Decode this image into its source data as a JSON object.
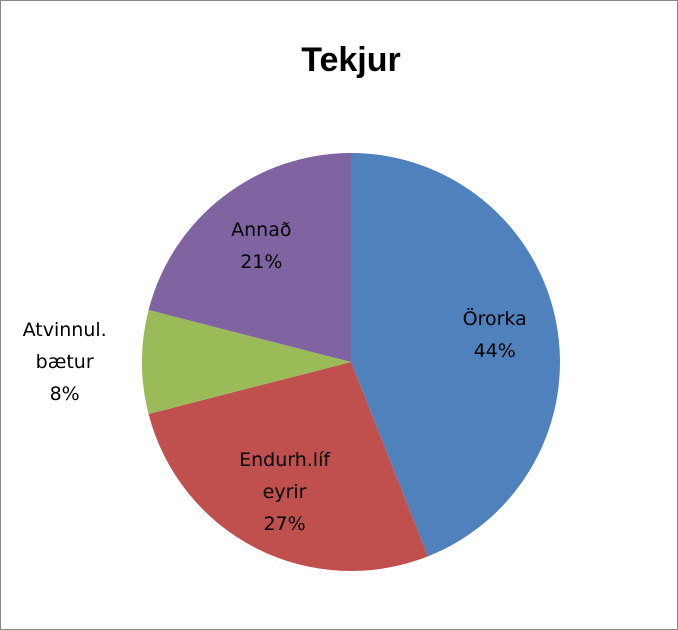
{
  "chart_data": {
    "type": "pie",
    "title": "Tekjur",
    "categories": [
      "Örorka",
      "Endurh.lífeyrir",
      "Atvinnul.bætur",
      "Annað"
    ],
    "values": [
      44,
      27,
      8,
      21
    ],
    "value_labels": [
      "44%",
      "27%",
      "8%",
      "21%"
    ],
    "colors": [
      "#4F81BD",
      "#C0504D",
      "#9BBB59",
      "#8064A2"
    ]
  }
}
